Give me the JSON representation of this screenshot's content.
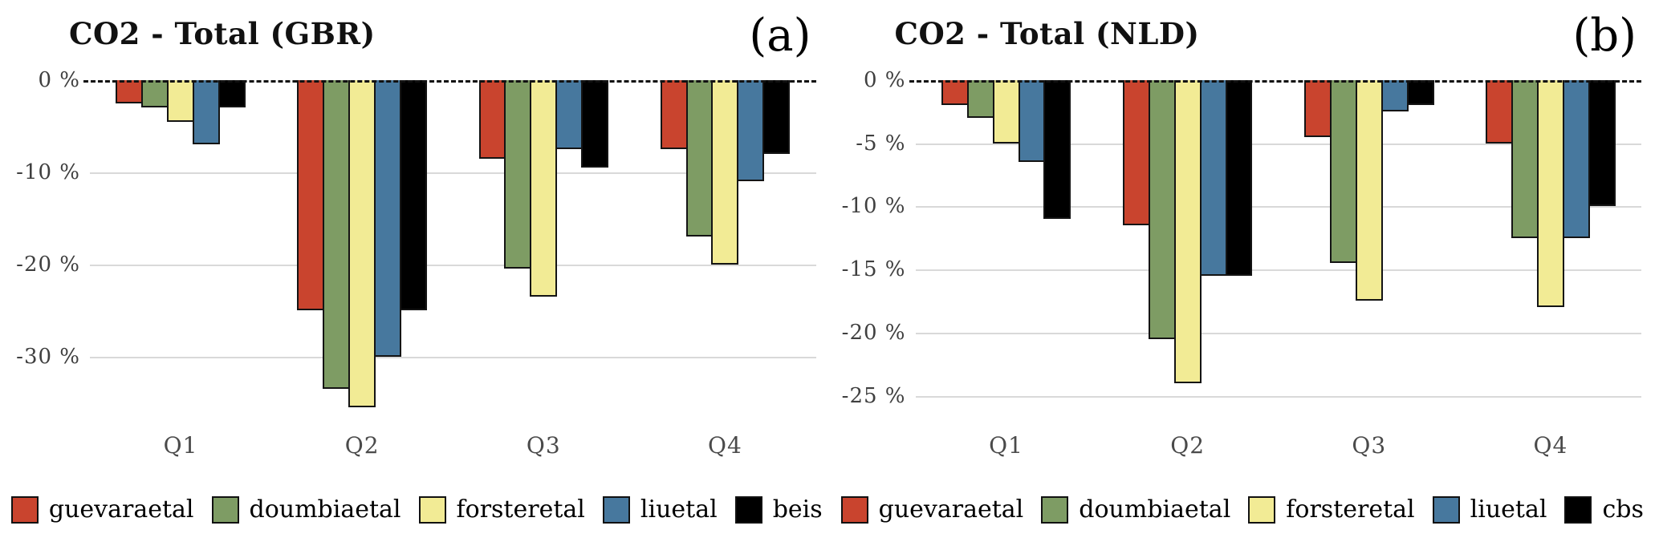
{
  "figure": {
    "background": "#ffffff",
    "grid_color": "#d9d9d9",
    "zero_line_color": "#111111",
    "bar_border_color": "#111111"
  },
  "chart_data": [
    {
      "type": "bar",
      "panel_label": "(a)",
      "title": "CO2 - Total (GBR)",
      "categories": [
        "Q1",
        "Q2",
        "Q3",
        "Q4"
      ],
      "series": [
        {
          "name": "guevaraetal",
          "color": "#c9442e",
          "values": [
            -2.5,
            -25,
            -8.5,
            -7.5
          ]
        },
        {
          "name": "doumbiaetal",
          "color": "#7e9c64",
          "values": [
            -3,
            -33.5,
            -20.5,
            -17
          ]
        },
        {
          "name": "forsteretal",
          "color": "#f2eb95",
          "values": [
            -4.5,
            -35.5,
            -23.5,
            -20
          ]
        },
        {
          "name": "liuetal",
          "color": "#47789e",
          "values": [
            -7,
            -30,
            -7.5,
            -11
          ]
        },
        {
          "name": "beis",
          "color": "#000000",
          "values": [
            -3,
            -25,
            -9.5,
            -8
          ]
        }
      ],
      "ylim": [
        -37,
        0
      ],
      "yticks": [
        {
          "value": 0,
          "label": "0 %"
        },
        {
          "value": -10,
          "label": "-10 %"
        },
        {
          "value": -20,
          "label": "-20 %"
        },
        {
          "value": -30,
          "label": "-30 %"
        }
      ],
      "zero_line_style": "dashed",
      "grid": "horizontal",
      "legend_position": "bottom"
    },
    {
      "type": "bar",
      "panel_label": "(b)",
      "title": "CO2 - Total (NLD)",
      "categories": [
        "Q1",
        "Q2",
        "Q3",
        "Q4"
      ],
      "series": [
        {
          "name": "guevaraetal",
          "color": "#c9442e",
          "values": [
            -2,
            -11.5,
            -4.5,
            -5
          ]
        },
        {
          "name": "doumbiaetal",
          "color": "#7e9c64",
          "values": [
            -3,
            -20.5,
            -14.5,
            -12.5
          ]
        },
        {
          "name": "forsteretal",
          "color": "#f2eb95",
          "values": [
            -5,
            -24,
            -17.5,
            -18
          ]
        },
        {
          "name": "liuetal",
          "color": "#47789e",
          "values": [
            -6.5,
            -15.5,
            -2.5,
            -12.5
          ]
        },
        {
          "name": "cbs",
          "color": "#000000",
          "values": [
            -11,
            -15.5,
            -2,
            -10
          ]
        }
      ],
      "ylim": [
        -27,
        0
      ],
      "yticks": [
        {
          "value": 0,
          "label": "0 %"
        },
        {
          "value": -5,
          "label": "-5 %"
        },
        {
          "value": -10,
          "label": "-10 %"
        },
        {
          "value": -15,
          "label": "-15 %"
        },
        {
          "value": -20,
          "label": "-20 %"
        },
        {
          "value": -25,
          "label": "-25 %"
        }
      ],
      "zero_line_style": "dashed",
      "grid": "horizontal",
      "legend_position": "bottom"
    }
  ]
}
